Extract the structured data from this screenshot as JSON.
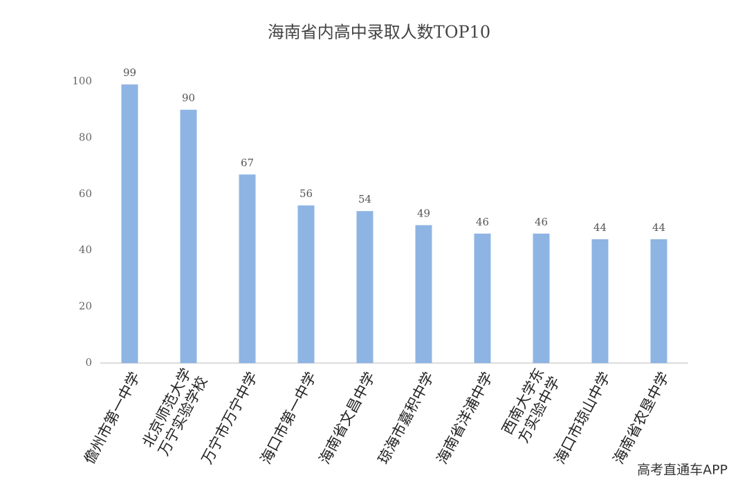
{
  "chart_data": {
    "type": "bar",
    "title": "海南省内高中录取人数TOP10",
    "categories": [
      "儋州市第一中学",
      "北京师范大学万宁实验学校",
      "万宁市万宁中学",
      "海口市第一中学",
      "海南省文昌中学",
      "琼海市嘉积中学",
      "海南省洋浦中学",
      "西南大学东方实验中学",
      "海口市琼山中学",
      "海南省农垦中学"
    ],
    "values": [
      99,
      90,
      67,
      56,
      54,
      49,
      46,
      46,
      44,
      44
    ],
    "color": "#8eb4e3",
    "ylim": [
      0,
      100
    ],
    "yticks": [
      0,
      20,
      40,
      60,
      80,
      100
    ],
    "grid": false,
    "watermark": "高考直通车APP"
  }
}
